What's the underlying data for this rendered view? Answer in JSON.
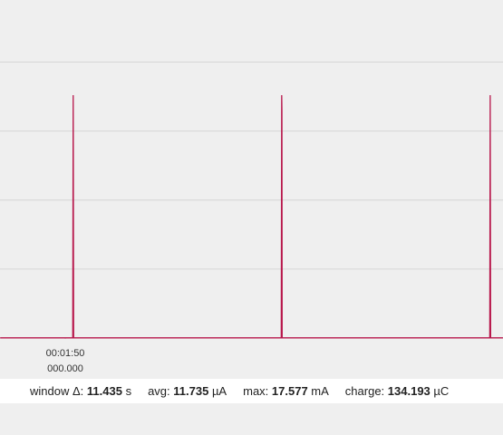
{
  "chart_data": {
    "type": "line",
    "x": [
      108.52,
      110.17,
      110.18,
      110.19,
      114.91,
      114.92,
      114.925,
      114.93,
      119.65,
      119.66,
      119.67,
      119.95
    ],
    "series": [
      {
        "color": "#b8184c",
        "values": [
          0.012,
          0.012,
          17.6,
          0.012,
          0.012,
          17.6,
          16.5,
          0.012,
          0.012,
          17.6,
          0.012,
          0.012
        ]
      }
    ],
    "xlim": [
      108.516,
      119.951
    ],
    "xticks": [
      {
        "value": 110,
        "label": "00:01:50",
        "sublabel": "000.000"
      }
    ],
    "ylim": [
      0,
      24.5
    ],
    "yticks": [
      0,
      5,
      10,
      15,
      20
    ],
    "grid": true
  },
  "status_bar": [
    {
      "label": "window Δ:",
      "value": "11.435",
      "unit": "s"
    },
    {
      "label": "avg:",
      "value": "11.735",
      "unit": "µA"
    },
    {
      "label": "max:",
      "value": "17.577",
      "unit": "mA"
    },
    {
      "label": "charge:",
      "value": "134.193",
      "unit": "µC"
    }
  ]
}
